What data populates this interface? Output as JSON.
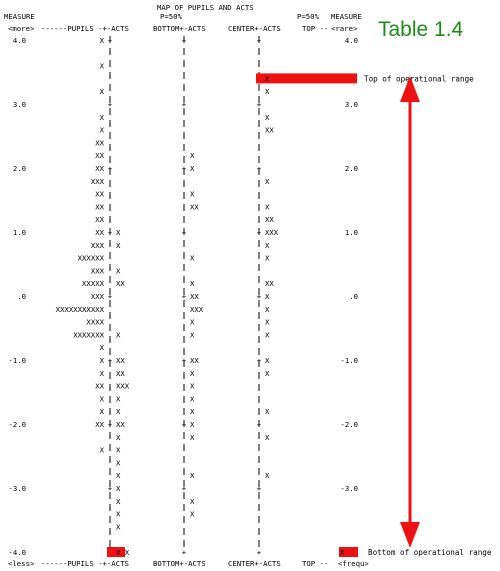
{
  "chart_data": {
    "type": "table",
    "title": "MAP OF PUPILS  AND ACTS",
    "corner_label": "Table 1.4",
    "subheader_p": "P=50%",
    "header_left": [
      "MEASURE",
      "<more>"
    ],
    "header_right": [
      "MEASURE",
      "<rare>"
    ],
    "header_cols": [
      "------PUPILS -+-ACTS",
      "BOTTOM+-ACTS",
      "CENTER+-ACTS",
      "TOP --"
    ],
    "footer_left": "<less>",
    "footer_cols": [
      "------PUPILS -+-ACTS",
      "BOTTOM+-ACTS",
      "CENTER+-ACTS",
      "TOP --"
    ],
    "footer_right": "<frequ>",
    "ylim": [
      -4.0,
      4.0
    ],
    "axis_ticks": [
      "4.0",
      "3.0",
      "2.0",
      "1.0",
      ".0",
      "-1.0",
      "-2.0",
      "-3.0",
      "-4.0"
    ],
    "rows": [
      {
        "y": 4.0,
        "pupils": "X",
        "acts": "",
        "bottom": "",
        "center": "",
        "top": ""
      },
      {
        "y": 3.6,
        "pupils": "X",
        "acts": "",
        "bottom": "",
        "center": "",
        "top": ""
      },
      {
        "y": 3.4,
        "pupils": "",
        "acts": "",
        "bottom": "",
        "center": "X",
        "top": ""
      },
      {
        "y": 3.2,
        "pupils": "X",
        "acts": "",
        "bottom": "",
        "center": "X",
        "top": ""
      },
      {
        "y": 2.8,
        "pupils": "X",
        "acts": "",
        "bottom": "",
        "center": "X",
        "top": ""
      },
      {
        "y": 2.6,
        "pupils": "X",
        "acts": "",
        "bottom": "",
        "center": "XX",
        "top": ""
      },
      {
        "y": 2.4,
        "pupils": "XX",
        "acts": "",
        "bottom": "",
        "center": "",
        "top": ""
      },
      {
        "y": 2.2,
        "pupils": "XX",
        "acts": "",
        "bottom": "X",
        "center": "",
        "top": ""
      },
      {
        "y": 2.0,
        "pupils": "XX",
        "acts": "",
        "bottom": "X",
        "center": "",
        "top": ""
      },
      {
        "y": 1.8,
        "pupils": "XXX",
        "acts": "",
        "bottom": "",
        "center": "X",
        "top": ""
      },
      {
        "y": 1.6,
        "pupils": "XX",
        "acts": "",
        "bottom": "X",
        "center": "",
        "top": ""
      },
      {
        "y": 1.4,
        "pupils": "XX",
        "acts": "",
        "bottom": "XX",
        "center": "X",
        "top": ""
      },
      {
        "y": 1.2,
        "pupils": "XX",
        "acts": "",
        "bottom": "",
        "center": "XX",
        "top": ""
      },
      {
        "y": 1.0,
        "pupils": "XX",
        "acts": "X",
        "bottom": "",
        "center": "XXX",
        "top": ""
      },
      {
        "y": 0.8,
        "pupils": "XXX",
        "acts": "X",
        "bottom": "",
        "center": "X",
        "top": ""
      },
      {
        "y": 0.6,
        "pupils": "XXXXXX",
        "acts": "",
        "bottom": "X",
        "center": "X",
        "top": ""
      },
      {
        "y": 0.4,
        "pupils": "XXX",
        "acts": "X",
        "bottom": "",
        "center": "",
        "top": ""
      },
      {
        "y": 0.2,
        "pupils": "XXXXX",
        "acts": "XX",
        "bottom": "X",
        "center": "XX",
        "top": ""
      },
      {
        "y": 0.0,
        "pupils": "XXX",
        "acts": "",
        "bottom": "XX",
        "center": "X",
        "top": ""
      },
      {
        "y": -0.2,
        "pupils": "XXXXXXXXXXX",
        "acts": "",
        "bottom": "XXX",
        "center": "X",
        "top": ""
      },
      {
        "y": -0.4,
        "pupils": "XXXX",
        "acts": "",
        "bottom": "X",
        "center": "X",
        "top": ""
      },
      {
        "y": -0.6,
        "pupils": "XXXXXXX",
        "acts": "X",
        "bottom": "X",
        "center": "X",
        "top": ""
      },
      {
        "y": -0.8,
        "pupils": "X",
        "acts": "",
        "bottom": "",
        "center": "",
        "top": ""
      },
      {
        "y": -1.0,
        "pupils": "X",
        "acts": "XX",
        "bottom": "XX",
        "center": "X",
        "top": ""
      },
      {
        "y": -1.2,
        "pupils": "X",
        "acts": "XX",
        "bottom": "X",
        "center": "X",
        "top": ""
      },
      {
        "y": -1.4,
        "pupils": "XX",
        "acts": "XXX",
        "bottom": "X",
        "center": "",
        "top": ""
      },
      {
        "y": -1.6,
        "pupils": "X",
        "acts": "X",
        "bottom": "X",
        "center": "",
        "top": ""
      },
      {
        "y": -1.8,
        "pupils": "X",
        "acts": "X",
        "bottom": "X",
        "center": "X",
        "top": ""
      },
      {
        "y": -2.0,
        "pupils": "XX",
        "acts": "XX",
        "bottom": "X",
        "center": "",
        "top": ""
      },
      {
        "y": -2.2,
        "pupils": "",
        "acts": "X",
        "bottom": "X",
        "center": "X",
        "top": ""
      },
      {
        "y": -2.4,
        "pupils": "X",
        "acts": "X",
        "bottom": "",
        "center": "",
        "top": ""
      },
      {
        "y": -2.6,
        "pupils": "",
        "acts": "X",
        "bottom": "",
        "center": "",
        "top": ""
      },
      {
        "y": -2.8,
        "pupils": "",
        "acts": "X",
        "bottom": "X",
        "center": "X",
        "top": ""
      },
      {
        "y": -3.0,
        "pupils": "",
        "acts": "X",
        "bottom": "",
        "center": "",
        "top": ""
      },
      {
        "y": -3.2,
        "pupils": "",
        "acts": "X",
        "bottom": "X",
        "center": "",
        "top": ""
      },
      {
        "y": -3.4,
        "pupils": "",
        "acts": "X",
        "bottom": "X",
        "center": "",
        "top": ""
      },
      {
        "y": -3.6,
        "pupils": "",
        "acts": "X",
        "bottom": "",
        "center": "",
        "top": ""
      },
      {
        "y": -4.0,
        "pupils": "",
        "acts": "X X",
        "bottom": "",
        "center": "",
        "top": "X"
      }
    ],
    "highlights": [
      {
        "measure": 3.4,
        "label": "Top of operational range",
        "color": "#ee1111"
      },
      {
        "measure": -4.0,
        "label": "Bottom of operational range",
        "color": "#ee1111"
      }
    ],
    "range_arrow": {
      "from": 3.0,
      "to": -4.0,
      "color": "#ee1111"
    }
  }
}
